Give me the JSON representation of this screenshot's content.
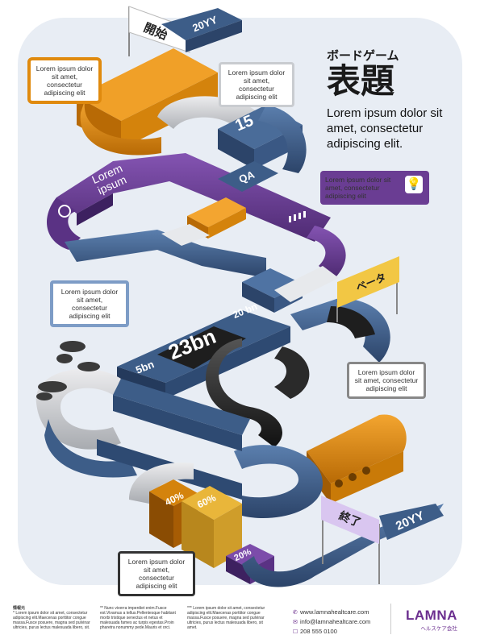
{
  "header": {
    "subtitle_jp": "ボードゲーム",
    "title_jp": "表題",
    "tagline": "Lorem ipsum dolor sit amet, consectetur adipiscing elit."
  },
  "board": {
    "start_flag": "開始",
    "start_year": "20YY",
    "end_flag": "終了",
    "end_year": "20YY",
    "beta_flag": "ベータ",
    "tile_15": "15",
    "tile_qa": "QA",
    "tile_lorem": "Lorem ipsum",
    "tile_23bn": "23bn",
    "tile_20bn": "20 bn",
    "tile_5bn": "5bn",
    "block_40": "40%",
    "block_60": "60%",
    "block_20": "20%"
  },
  "callouts": {
    "orange": "Lorem ipsum dolor sit amet, consectetur adipiscing elit",
    "top_white": "Lorem ipsum dolor sit amet, consectetur adipiscing elit",
    "purple": "Lorem ipsum dolor sit amet, consectetur adipiscing elit",
    "blue": "Lorem ipsum dolor sit amet, consectetur adipiscing elit",
    "gray_right": "Lorem ipsum dolor sit amet, consectetur adipiscing elit",
    "dark_bottom": "Lorem ipsum dolor sit amet, consectetur adipiscing elit"
  },
  "footer": {
    "notes_title": "情報元",
    "col1": "* Lorem ipsum dolor sit amet, consectetur adipiscing elit.Maecenas porttitor congue massa.Fusce posuere, magna sed pulvinar ultricies, purus lectus malesuada libero, sit.",
    "col2": "** Nunc viverra imperdiet enim.Fusce est.Vivamus a tellus.Pellentesque habitant morbi tristique senectus et netus et malesuada fames ac turpis egestas.Proin pharetra nonummy pede.Mauris et orci.",
    "col3": "*** Lorem ipsum dolor sit amet, consectetur adipiscing elit.Maecenas porttitor congue massa.Fusce posuere, magna sed pulvinar ultricies, purus lectus malesuada libero, sit amet.",
    "website": "www.lamnahealtcare.com",
    "email": "info@lamnahealtcare.com",
    "phone": "208 555 0100",
    "brand_name": "LAMNA",
    "brand_sub": "ヘルスケア会社"
  },
  "colors": {
    "navy": "#3d5d88",
    "purple": "#6a3d93",
    "orange": "#e08a0e",
    "gray": "#c9ccd0",
    "black": "#2a2a2a",
    "lavender": "#c9b4e6",
    "gold": "#e9b63a"
  }
}
